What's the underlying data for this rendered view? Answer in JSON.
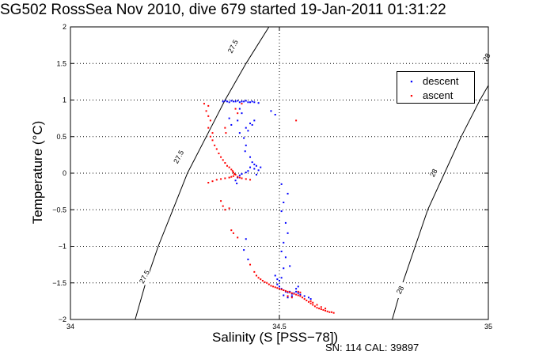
{
  "title": "SG502 RossSea Nov 2010, dive 679 started 19-Jan-2011 01:31:22",
  "footer": "SN: 114  CAL: 39897",
  "colors": {
    "descent": "#0000ff",
    "ascent": "#ff0000",
    "axes": "#000000"
  },
  "chart_data": {
    "type": "scatter",
    "xlabel": "Salinity (S [PSS−78])",
    "ylabel": "Temperature (°C)",
    "xlim": [
      34,
      35
    ],
    "ylim": [
      -2,
      2
    ],
    "xticks": [
      34,
      34.5,
      35
    ],
    "xtick_labels": [
      "34",
      "34.5",
      "35"
    ],
    "yticks": [
      -2,
      -1.5,
      -1,
      -0.5,
      0,
      0.5,
      1,
      1.5,
      2
    ],
    "ytick_labels": [
      "−2",
      "−1.5",
      "−1",
      "−0.5",
      "0",
      "0.5",
      "1",
      "1.5",
      "2"
    ],
    "grid": true,
    "legend_position": "top-right",
    "isopycnals": [
      {
        "label": "27.5",
        "points": [
          [
            34.155,
            -2.0
          ],
          [
            34.18,
            -1.5
          ],
          [
            34.21,
            -1.0
          ],
          [
            34.245,
            -0.5
          ],
          [
            34.28,
            0.0
          ],
          [
            34.325,
            0.5
          ],
          [
            34.37,
            1.0
          ],
          [
            34.42,
            1.5
          ],
          [
            34.475,
            2.0
          ]
        ]
      },
      {
        "label": "28",
        "points": [
          [
            34.77,
            -2.0
          ],
          [
            34.795,
            -1.5
          ],
          [
            34.825,
            -1.0
          ],
          [
            34.855,
            -0.5
          ],
          [
            34.895,
            0.0
          ],
          [
            34.935,
            0.5
          ],
          [
            34.98,
            1.0
          ],
          [
            35.03,
            1.5
          ]
        ]
      }
    ],
    "isopycnal_labels": [
      {
        "text": "27.5",
        "x": 34.39,
        "y": 1.73
      },
      {
        "text": "27.5",
        "x": 34.26,
        "y": 0.22
      },
      {
        "text": "27.5",
        "x": 34.178,
        "y": -1.42
      },
      {
        "text": "28",
        "x": 34.997,
        "y": 1.58
      },
      {
        "text": "28",
        "x": 34.87,
        "y": 0.0
      },
      {
        "text": "28",
        "x": 34.79,
        "y": -1.6
      }
    ],
    "series": [
      {
        "name": "descent",
        "color": "#0000ff",
        "points": [
          [
            34.365,
            0.98
          ],
          [
            34.37,
            0.99
          ],
          [
            34.375,
            0.98
          ],
          [
            34.38,
            0.97
          ],
          [
            34.385,
            0.99
          ],
          [
            34.39,
            0.98
          ],
          [
            34.395,
            0.98
          ],
          [
            34.4,
            0.99
          ],
          [
            34.405,
            0.97
          ],
          [
            34.41,
            0.98
          ],
          [
            34.415,
            0.98
          ],
          [
            34.42,
            0.99
          ],
          [
            34.425,
            0.97
          ],
          [
            34.43,
            0.97
          ],
          [
            34.435,
            0.98
          ],
          [
            34.44,
            0.97
          ],
          [
            34.45,
            0.96
          ],
          [
            34.405,
            0.88
          ],
          [
            34.41,
            0.82
          ],
          [
            34.38,
            0.75
          ],
          [
            34.4,
            0.72
          ],
          [
            34.385,
            0.66
          ],
          [
            34.43,
            0.68
          ],
          [
            34.42,
            0.62
          ],
          [
            34.425,
            0.58
          ],
          [
            34.44,
            0.72
          ],
          [
            34.435,
            0.66
          ],
          [
            34.405,
            0.55
          ],
          [
            34.415,
            0.48
          ],
          [
            34.42,
            0.38
          ],
          [
            34.418,
            0.3
          ],
          [
            34.43,
            0.22
          ],
          [
            34.435,
            0.15
          ],
          [
            34.44,
            0.12
          ],
          [
            34.43,
            0.08
          ],
          [
            34.425,
            0.03
          ],
          [
            34.42,
            0.01
          ],
          [
            34.41,
            -0.01
          ],
          [
            34.405,
            -0.03
          ],
          [
            34.4,
            -0.06
          ],
          [
            34.395,
            -0.1
          ],
          [
            34.398,
            -0.14
          ],
          [
            34.44,
            0.06
          ],
          [
            34.445,
            0.1
          ],
          [
            34.45,
            0.04
          ],
          [
            34.455,
            0.08
          ],
          [
            34.445,
            -0.02
          ],
          [
            34.48,
            0.85
          ],
          [
            34.49,
            0.8
          ],
          [
            34.505,
            -0.15
          ],
          [
            34.52,
            -0.28
          ],
          [
            34.51,
            -0.4
          ],
          [
            34.505,
            -0.52
          ],
          [
            34.515,
            -0.68
          ],
          [
            34.52,
            -0.82
          ],
          [
            34.51,
            -0.95
          ],
          [
            34.505,
            -1.07
          ],
          [
            34.515,
            -1.15
          ],
          [
            34.525,
            -1.27
          ],
          [
            34.51,
            -1.3
          ],
          [
            34.42,
            -0.9
          ],
          [
            34.415,
            -1.05
          ],
          [
            34.425,
            -1.18
          ],
          [
            34.49,
            -1.4
          ],
          [
            34.495,
            -1.45
          ],
          [
            34.5,
            -1.47
          ],
          [
            34.505,
            -1.43
          ],
          [
            34.495,
            -1.52
          ],
          [
            34.5,
            -1.55
          ],
          [
            34.505,
            -1.58
          ],
          [
            34.51,
            -1.6
          ],
          [
            34.515,
            -1.62
          ],
          [
            34.52,
            -1.63
          ],
          [
            34.525,
            -1.62
          ],
          [
            34.53,
            -1.65
          ],
          [
            34.535,
            -1.64
          ],
          [
            34.54,
            -1.62
          ],
          [
            34.545,
            -1.64
          ],
          [
            34.55,
            -1.66
          ],
          [
            34.51,
            -1.67
          ],
          [
            34.52,
            -1.7
          ],
          [
            34.53,
            -1.68
          ],
          [
            34.56,
            -1.68
          ],
          [
            34.57,
            -1.7
          ],
          [
            34.575,
            -1.72
          ],
          [
            34.54,
            -1.58
          ],
          [
            34.545,
            -1.55
          ]
        ]
      },
      {
        "name": "ascent",
        "color": "#ff0000",
        "points": [
          [
            34.32,
            0.95
          ],
          [
            34.33,
            0.92
          ],
          [
            34.325,
            0.85
          ],
          [
            34.33,
            0.78
          ],
          [
            34.335,
            0.72
          ],
          [
            34.33,
            0.62
          ],
          [
            34.34,
            0.55
          ],
          [
            34.335,
            0.5
          ],
          [
            34.34,
            0.45
          ],
          [
            34.345,
            0.38
          ],
          [
            34.35,
            0.33
          ],
          [
            34.355,
            0.27
          ],
          [
            34.36,
            0.22
          ],
          [
            34.365,
            0.18
          ],
          [
            34.37,
            0.14
          ],
          [
            34.375,
            0.1
          ],
          [
            34.38,
            0.08
          ],
          [
            34.385,
            0.05
          ],
          [
            34.388,
            0.03
          ],
          [
            34.39,
            0.01
          ],
          [
            34.392,
            -0.01
          ],
          [
            34.395,
            -0.02
          ],
          [
            34.39,
            -0.04
          ],
          [
            34.385,
            -0.05
          ],
          [
            34.38,
            -0.06
          ],
          [
            34.37,
            -0.07
          ],
          [
            34.36,
            -0.08
          ],
          [
            34.35,
            -0.09
          ],
          [
            34.34,
            -0.11
          ],
          [
            34.33,
            -0.13
          ],
          [
            34.4,
            -0.05
          ],
          [
            34.405,
            -0.06
          ],
          [
            34.41,
            -0.07
          ],
          [
            34.42,
            -0.08
          ],
          [
            34.43,
            -0.09
          ],
          [
            34.4,
            0.82
          ],
          [
            34.395,
            0.88
          ],
          [
            34.41,
            0.95
          ],
          [
            34.37,
            0.62
          ],
          [
            34.372,
            0.55
          ],
          [
            34.54,
            0.72
          ],
          [
            34.36,
            -0.38
          ],
          [
            34.365,
            -0.45
          ],
          [
            34.37,
            -0.5
          ],
          [
            34.38,
            -0.48
          ],
          [
            34.385,
            -0.78
          ],
          [
            34.39,
            -0.82
          ],
          [
            34.4,
            -0.88
          ],
          [
            34.43,
            -1.25
          ],
          [
            34.44,
            -1.35
          ],
          [
            34.445,
            -1.4
          ],
          [
            34.45,
            -1.43
          ],
          [
            34.455,
            -1.45
          ],
          [
            34.46,
            -1.47
          ],
          [
            34.465,
            -1.49
          ],
          [
            34.47,
            -1.5
          ],
          [
            34.475,
            -1.52
          ],
          [
            34.48,
            -1.54
          ],
          [
            34.485,
            -1.55
          ],
          [
            34.49,
            -1.56
          ],
          [
            34.495,
            -1.57
          ],
          [
            34.5,
            -1.58
          ],
          [
            34.505,
            -1.59
          ],
          [
            34.51,
            -1.6
          ],
          [
            34.515,
            -1.61
          ],
          [
            34.52,
            -1.62
          ],
          [
            34.525,
            -1.63
          ],
          [
            34.53,
            -1.64
          ],
          [
            34.535,
            -1.65
          ],
          [
            34.54,
            -1.66
          ],
          [
            34.545,
            -1.67
          ],
          [
            34.55,
            -1.68
          ],
          [
            34.555,
            -1.7
          ],
          [
            34.56,
            -1.72
          ],
          [
            34.565,
            -1.74
          ],
          [
            34.57,
            -1.76
          ],
          [
            34.575,
            -1.78
          ],
          [
            34.58,
            -1.8
          ],
          [
            34.585,
            -1.82
          ],
          [
            34.59,
            -1.84
          ],
          [
            34.595,
            -1.85
          ],
          [
            34.6,
            -1.86
          ],
          [
            34.605,
            -1.87
          ],
          [
            34.61,
            -1.88
          ],
          [
            34.615,
            -1.89
          ],
          [
            34.62,
            -1.9
          ],
          [
            34.625,
            -1.9
          ],
          [
            34.63,
            -1.91
          ],
          [
            34.575,
            -1.75
          ],
          [
            34.58,
            -1.77
          ],
          [
            34.59,
            -1.8
          ],
          [
            34.6,
            -1.83
          ],
          [
            34.61,
            -1.85
          ],
          [
            34.52,
            -1.68
          ],
          [
            34.53,
            -1.7
          ],
          [
            34.545,
            -1.62
          ],
          [
            34.55,
            -1.63
          ]
        ]
      }
    ]
  }
}
